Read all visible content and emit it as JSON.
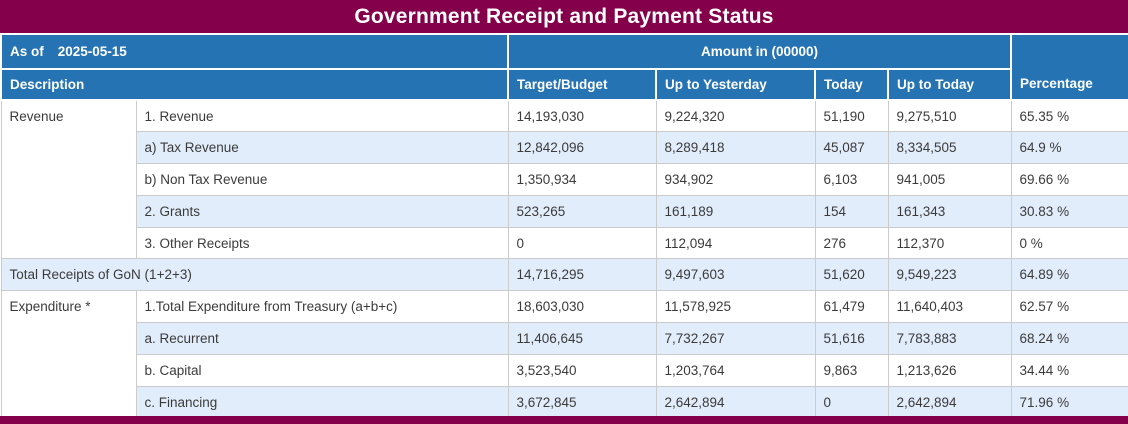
{
  "title": "Government Receipt and Payment Status",
  "subheader": {
    "as_of_label": "As of",
    "as_of_date": "2025-05-15",
    "amount_note": "Amount in (00000)"
  },
  "columns": {
    "description": "Description",
    "target_budget": "Target/Budget",
    "up_to_yesterday": "Up to Yesterday",
    "today": "Today",
    "up_to_today": "Up to Today",
    "percentage": "Percentage"
  },
  "categories": {
    "revenue": "Revenue",
    "expenditure": "Expenditure *"
  },
  "rows": [
    {
      "item": "1. Revenue",
      "target": "14,193,030",
      "up_to_yesterday": "9,224,320",
      "today": "51,190",
      "up_to_today": "9,275,510",
      "percentage": "65.35 %"
    },
    {
      "item": "a) Tax Revenue",
      "target": "12,842,096",
      "up_to_yesterday": "8,289,418",
      "today": "45,087",
      "up_to_today": "8,334,505",
      "percentage": "64.9 %"
    },
    {
      "item": "b) Non Tax Revenue",
      "target": "1,350,934",
      "up_to_yesterday": "934,902",
      "today": "6,103",
      "up_to_today": "941,005",
      "percentage": "69.66 %"
    },
    {
      "item": "2. Grants",
      "target": "523,265",
      "up_to_yesterday": "161,189",
      "today": "154",
      "up_to_today": "161,343",
      "percentage": "30.83 %"
    },
    {
      "item": "3. Other Receipts",
      "target": "0",
      "up_to_yesterday": "112,094",
      "today": "276",
      "up_to_today": "112,370",
      "percentage": "0 %"
    },
    {
      "item": "Total Receipts of GoN (1+2+3)",
      "target": "14,716,295",
      "up_to_yesterday": "9,497,603",
      "today": "51,620",
      "up_to_today": "9,549,223",
      "percentage": "64.89 %"
    },
    {
      "item": "1.Total Expenditure from Treasury (a+b+c)",
      "target": "18,603,030",
      "up_to_yesterday": "11,578,925",
      "today": "61,479",
      "up_to_today": "11,640,403",
      "percentage": "62.57 %"
    },
    {
      "item": "a. Recurrent",
      "target": "11,406,645",
      "up_to_yesterday": "7,732,267",
      "today": "51,616",
      "up_to_today": "7,783,883",
      "percentage": "68.24 %"
    },
    {
      "item": "b. Capital",
      "target": "3,523,540",
      "up_to_yesterday": "1,203,764",
      "today": "9,863",
      "up_to_today": "1,213,626",
      "percentage": "34.44 %"
    },
    {
      "item": "c. Financing",
      "target": "3,672,845",
      "up_to_yesterday": "2,642,894",
      "today": "0",
      "up_to_today": "2,642,894",
      "percentage": "71.96 %"
    }
  ],
  "colors": {
    "title_bar": "#85004b",
    "header_blue": "#2573b3",
    "stripe_blue": "#e2edfb",
    "body_text": "#3b3b3b",
    "border_gray": "#cbcbcb"
  }
}
